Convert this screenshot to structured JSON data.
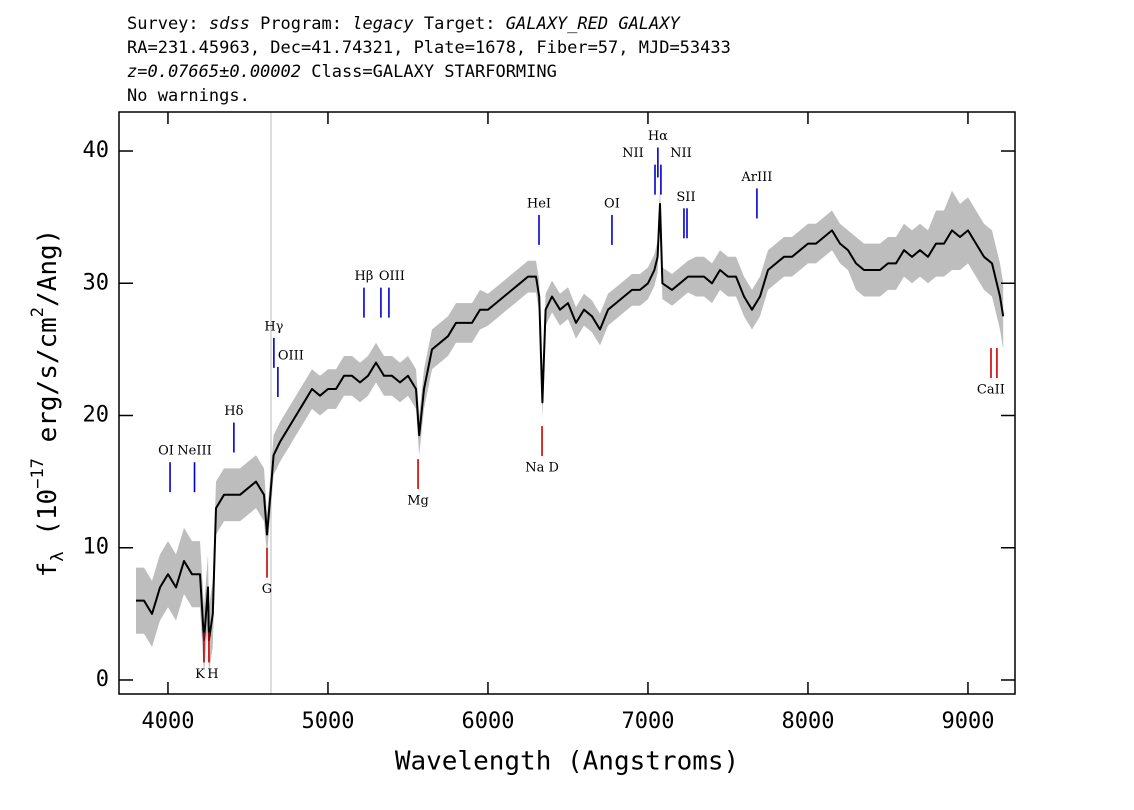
{
  "chart_data": {
    "type": "line",
    "title_lines": [
      [
        {
          "text": "Survey: "
        },
        {
          "text": "sdss",
          "italic": true
        },
        {
          "text": " Program: "
        },
        {
          "text": "legacy",
          "italic": true
        },
        {
          "text": " Target: "
        },
        {
          "text": "GALAXY_RED GALAXY",
          "italic": true
        }
      ],
      [
        {
          "text": "RA=231.45963, Dec=41.74321, Plate=1678, Fiber=57, MJD=53433"
        }
      ],
      [
        {
          "text": "z=0.07665±0.00002",
          "italic": true
        },
        {
          "text": " Class=GALAXY STARFORMING"
        }
      ],
      [
        {
          "text": "No warnings."
        }
      ]
    ],
    "xlabel": "Wavelength (Angstroms)",
    "ylabel": [
      {
        "text": "f"
      },
      {
        "text": "λ",
        "shift": "sub"
      },
      {
        "text": " (10"
      },
      {
        "text": "−17",
        "shift": "super"
      },
      {
        "text": " erg/s/cm"
      },
      {
        "text": "2",
        "shift": "super"
      },
      {
        "text": "/Ang)"
      }
    ],
    "xlim": [
      3694,
      9294
    ],
    "ylim": [
      -1.06,
      42.95
    ],
    "xticks": [
      4000,
      5000,
      6000,
      7000,
      8000,
      9000
    ],
    "yticks": [
      0,
      10,
      20,
      30,
      40
    ],
    "vline": {
      "x": 4644,
      "color": "#c8c8c8"
    },
    "x": [
      3800,
      3850,
      3900,
      3950,
      4000,
      4050,
      4100,
      4150,
      4200,
      4225,
      4250,
      4256,
      4280,
      4300,
      4350,
      4400,
      4450,
      4500,
      4550,
      4600,
      4619,
      4640,
      4660,
      4700,
      4750,
      4800,
      4850,
      4900,
      4950,
      5000,
      5050,
      5100,
      5150,
      5200,
      5250,
      5300,
      5350,
      5400,
      5450,
      5500,
      5550,
      5570,
      5600,
      5650,
      5700,
      5750,
      5800,
      5850,
      5900,
      5950,
      6000,
      6050,
      6100,
      6150,
      6200,
      6250,
      6300,
      6320,
      6340,
      6360,
      6400,
      6450,
      6500,
      6550,
      6600,
      6650,
      6700,
      6750,
      6800,
      6850,
      6900,
      6950,
      7000,
      7040,
      7060,
      7075,
      7090,
      7150,
      7200,
      7250,
      7300,
      7350,
      7400,
      7450,
      7500,
      7550,
      7600,
      7650,
      7700,
      7750,
      7800,
      7850,
      7900,
      7950,
      8000,
      8050,
      8100,
      8150,
      8200,
      8250,
      8300,
      8350,
      8400,
      8450,
      8500,
      8550,
      8600,
      8650,
      8700,
      8750,
      8800,
      8850,
      8900,
      8950,
      9000,
      9050,
      9100,
      9150,
      9200,
      9220
    ],
    "series": [
      {
        "color": "#000000",
        "band_color": "#bdbdbd",
        "values": [
          6,
          6,
          5,
          7,
          8,
          7,
          9,
          8,
          8,
          3,
          7,
          3,
          5,
          13,
          14,
          14,
          14,
          14.5,
          15,
          14,
          11,
          14,
          17,
          18,
          19,
          20,
          21,
          22,
          21.5,
          22,
          22,
          23,
          23,
          22.5,
          23,
          24,
          23,
          23,
          22.5,
          23,
          22,
          18.5,
          22,
          25,
          25.5,
          26,
          27,
          27,
          27,
          28,
          28,
          28.5,
          29,
          29.5,
          30,
          30.5,
          30.5,
          29,
          21,
          28,
          29,
          28,
          28.5,
          27,
          28,
          27.5,
          26.5,
          28,
          28.5,
          29,
          29.5,
          29.5,
          30,
          31,
          32,
          36,
          30,
          29.5,
          30,
          30.5,
          30.5,
          30.5,
          30,
          31,
          30.5,
          30.5,
          29,
          28,
          29,
          31,
          31.5,
          32,
          32,
          32.5,
          33,
          33,
          33.5,
          34,
          33,
          32.5,
          31.5,
          31,
          31,
          31,
          31.5,
          31.5,
          32.5,
          32,
          32.5,
          32,
          33,
          33,
          34,
          33.5,
          34,
          33,
          32,
          31.5,
          29,
          27.5
        ],
        "band": [
          2.5,
          2.5,
          2.5,
          2.5,
          2.5,
          2.5,
          2.5,
          2.5,
          2.5,
          2.5,
          2.5,
          2.5,
          2.5,
          2,
          2,
          2,
          2,
          2,
          2,
          2,
          1.5,
          1.5,
          1.5,
          1.5,
          1.5,
          1.5,
          1.5,
          1.5,
          1.5,
          1.5,
          1.5,
          1.5,
          1.5,
          1.5,
          1.5,
          1.5,
          1.5,
          1.5,
          1.5,
          1.5,
          1.5,
          1.5,
          1.5,
          1.5,
          1.5,
          1.5,
          1.5,
          1.5,
          1.5,
          1.5,
          1.2,
          1.2,
          1.2,
          1.2,
          1.2,
          1.2,
          1.2,
          1.2,
          1.2,
          1.2,
          1.2,
          1.2,
          1.2,
          1.2,
          1.2,
          1.2,
          1.2,
          1.2,
          1.2,
          1.2,
          1.2,
          1.2,
          1.2,
          1.2,
          1.2,
          1.2,
          1.2,
          1.2,
          1.2,
          1.2,
          1.5,
          1.5,
          1.5,
          1.5,
          1.5,
          1.5,
          1.5,
          1.5,
          1.5,
          1.5,
          1.5,
          1.5,
          1.5,
          1.5,
          1.5,
          1.5,
          1.5,
          1.5,
          1.5,
          1.5,
          2,
          2,
          2,
          2,
          2,
          2,
          2,
          2,
          2,
          2,
          2.5,
          2.5,
          3,
          2.5,
          2.5,
          2.5,
          2.5,
          2.5,
          2.5,
          2.5
        ]
      }
    ],
    "emission_lines": {
      "color": "#0000cc",
      "lines": [
        {
          "label": "OI",
          "x": 4013,
          "y": 14.2
        },
        {
          "label": "NeIII",
          "x": 4166,
          "y": 14.2
        },
        {
          "label": "Hδ",
          "x": 4412,
          "y": 17.2
        },
        {
          "label": "Hγ",
          "x": 4662,
          "y": 23.6
        },
        {
          "label": "OIII",
          "x": 4687,
          "y": 21.4
        },
        {
          "label": "Hβ",
          "x": 5225,
          "y": 27.4
        },
        {
          "label": null,
          "x": 5331,
          "y": 27.4
        },
        {
          "label": "OIII",
          "x": 5381,
          "y": 27.4
        },
        {
          "label": "HeI",
          "x": 6319,
          "y": 32.9
        },
        {
          "label": "OI",
          "x": 6775,
          "y": 32.9
        },
        {
          "label": "NII",
          "x": 7044,
          "y": 36.7
        },
        {
          "label": "Hα",
          "x": 7062,
          "y": 38.0
        },
        {
          "label": "NII",
          "x": 7081,
          "y": 36.7
        },
        {
          "label": null,
          "x": 7225,
          "y": 33.4
        },
        {
          "label": "SII",
          "x": 7244,
          "y": 33.4
        },
        {
          "label": "ArIII",
          "x": 7681,
          "y": 34.9
        }
      ]
    },
    "absorption_lines": {
      "color": "#cc0000",
      "lines": [
        {
          "label": "K",
          "x": 4225,
          "y": 3.6
        },
        {
          "label": "H",
          "x": 4256,
          "y": 3.6
        },
        {
          "label": "G",
          "x": 4619,
          "y": 10.0
        },
        {
          "label": "Mg",
          "x": 5563,
          "y": 16.7
        },
        {
          "label": "Na D",
          "x": 6338,
          "y": 19.2
        },
        {
          "label": null,
          "x": 9144,
          "y": 25.1
        },
        {
          "label": "CaII",
          "x": 9181,
          "y": 25.1
        }
      ]
    }
  }
}
